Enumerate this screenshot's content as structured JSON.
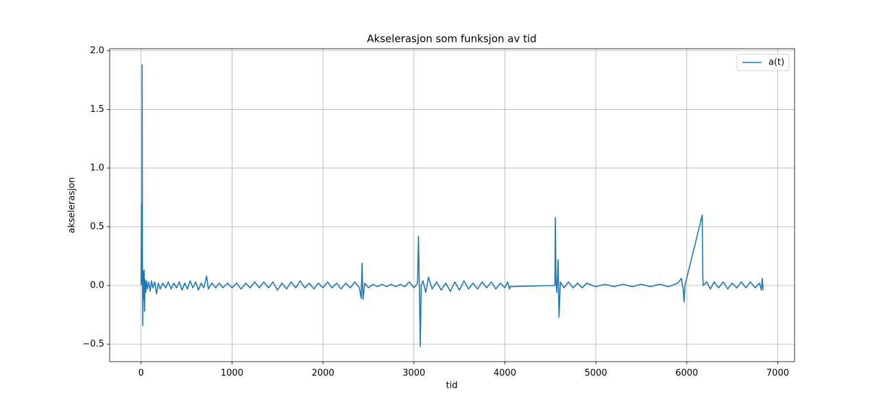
{
  "chart_data": {
    "type": "line",
    "title": "Akselerasjon som funksjon av tid",
    "xlabel": "tid",
    "ylabel": "akselerasjon",
    "x": [
      0,
      5,
      9,
      12,
      15,
      19,
      24,
      29,
      34,
      38,
      44,
      52,
      60,
      70,
      85,
      100,
      115,
      130,
      150,
      170,
      190,
      210,
      240,
      270,
      300,
      330,
      360,
      390,
      420,
      450,
      480,
      510,
      540,
      570,
      600,
      630,
      660,
      690,
      720,
      740,
      780,
      820,
      860,
      900,
      950,
      1000,
      1050,
      1100,
      1150,
      1200,
      1250,
      1300,
      1350,
      1400,
      1450,
      1500,
      1550,
      1600,
      1650,
      1700,
      1750,
      1800,
      1850,
      1900,
      1950,
      2000,
      2050,
      2100,
      2150,
      2200,
      2250,
      2300,
      2350,
      2400,
      2420,
      2430,
      2440,
      2460,
      2500,
      2550,
      2600,
      2650,
      2700,
      2750,
      2800,
      2850,
      2900,
      2950,
      3000,
      3040,
      3050,
      3060,
      3070,
      3080,
      3100,
      3130,
      3160,
      3200,
      3250,
      3300,
      3350,
      3400,
      3450,
      3500,
      3550,
      3600,
      3650,
      3700,
      3750,
      3800,
      3850,
      3900,
      3950,
      4000,
      4030,
      4050,
      4060,
      4550,
      4555,
      4562,
      4572,
      4585,
      4595,
      4610,
      4650,
      4700,
      4750,
      4800,
      4850,
      4900,
      5000,
      5100,
      5200,
      5300,
      5400,
      5500,
      5600,
      5700,
      5800,
      5900,
      5940,
      5960,
      5970,
      5980,
      6170,
      6175,
      6180,
      6220,
      6260,
      6300,
      6350,
      6400,
      6450,
      6500,
      6550,
      6600,
      6650,
      6700,
      6750,
      6800,
      6820,
      6830,
      6840
    ],
    "series": [
      {
        "name": "a(t)",
        "color": "#1f77b4",
        "values": [
          0,
          0.7,
          0.02,
          1.88,
          0.25,
          -0.34,
          0.12,
          -0.12,
          0.13,
          -0.22,
          0.05,
          -0.06,
          0.04,
          -0.03,
          0.03,
          -0.05,
          0.04,
          -0.02,
          0.03,
          -0.07,
          0.02,
          -0.03,
          0.02,
          -0.02,
          0.03,
          -0.03,
          0.02,
          -0.02,
          0.03,
          -0.04,
          0.02,
          -0.03,
          0.04,
          -0.02,
          0.03,
          -0.04,
          0.02,
          -0.02,
          0.08,
          -0.03,
          0.02,
          -0.02,
          0.02,
          -0.02,
          0.02,
          -0.02,
          0.02,
          -0.03,
          0.02,
          -0.02,
          0.03,
          -0.02,
          0.03,
          -0.02,
          0.03,
          -0.04,
          0.02,
          -0.03,
          0.03,
          -0.02,
          0.04,
          -0.02,
          0.02,
          -0.03,
          0.02,
          -0.02,
          0.03,
          -0.02,
          0.02,
          -0.03,
          0.02,
          -0.02,
          0.03,
          -0.02,
          -0.11,
          0.19,
          -0.12,
          0.02,
          -0.02,
          0.01,
          -0.01,
          0.01,
          -0.01,
          0.01,
          -0.01,
          0.01,
          -0.01,
          0.03,
          -0.02,
          0.02,
          0.42,
          -0.02,
          -0.52,
          0.0,
          0.04,
          -0.06,
          0.07,
          -0.03,
          0.03,
          -0.04,
          0.02,
          -0.05,
          0.03,
          -0.04,
          0.04,
          -0.03,
          0.02,
          -0.03,
          0.03,
          -0.02,
          0.03,
          -0.03,
          0.02,
          -0.02,
          0.03,
          -0.03,
          -0.01,
          0.0,
          0.58,
          0.03,
          -0.06,
          0.22,
          -0.27,
          0.03,
          -0.02,
          0.03,
          -0.02,
          0.02,
          -0.02,
          0.02,
          -0.01,
          0.01,
          -0.01,
          0.01,
          -0.01,
          0.01,
          -0.01,
          0.01,
          -0.01,
          0.02,
          0.06,
          -0.03,
          -0.14,
          0.0,
          0.6,
          0.1,
          0.0,
          0.03,
          -0.03,
          0.03,
          -0.02,
          0.03,
          -0.03,
          0.02,
          -0.02,
          0.03,
          -0.02,
          0.03,
          -0.02,
          0.02,
          -0.04,
          0.06,
          -0.04
        ]
      }
    ],
    "xlim": [
      -345,
      7185
    ],
    "xticks": [
      0,
      1000,
      2000,
      3000,
      4000,
      5000,
      6000,
      7000
    ],
    "ylim": [
      -0.649,
      2.017
    ],
    "yticks": [
      {
        "value": -0.5,
        "label": "−0.5"
      },
      {
        "value": 0,
        "label": "0.0"
      },
      0.5,
      {
        "value": 1,
        "label": "1.0"
      },
      1.5,
      {
        "value": 2,
        "label": "2.0"
      }
    ],
    "grid": true,
    "legend": "upper right"
  }
}
